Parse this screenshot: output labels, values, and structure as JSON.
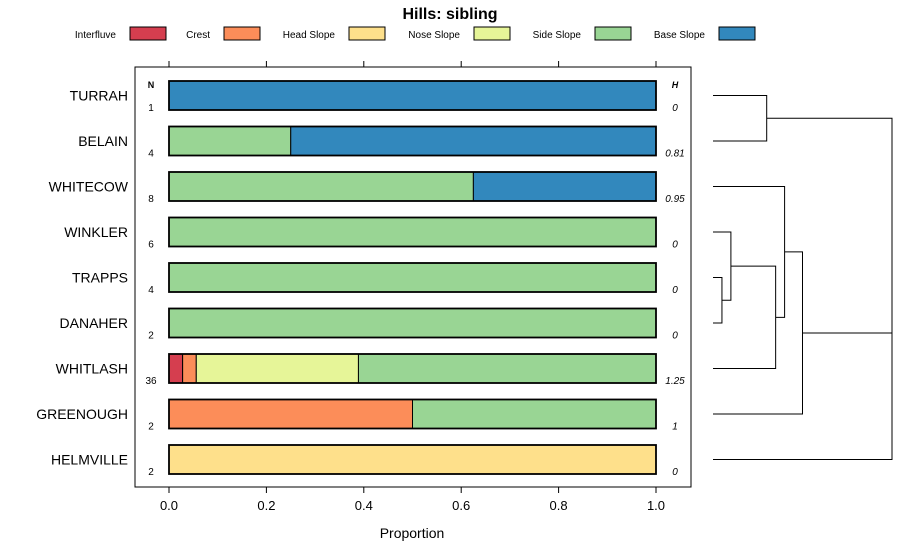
{
  "chart_data": {
    "type": "bar",
    "orientation": "horizontal-stacked",
    "title": "Hills: sibling",
    "xlabel": "Proportion",
    "xlim": [
      0,
      1
    ],
    "xticks": [
      "0.0",
      "0.2",
      "0.4",
      "0.6",
      "0.8",
      "1.0"
    ],
    "n_header": "N",
    "h_header": "H",
    "legend_position": "top",
    "series": [
      {
        "name": "Interfluve",
        "color": "#d53e4f"
      },
      {
        "name": "Crest",
        "color": "#fc8d59"
      },
      {
        "name": "Head Slope",
        "color": "#fee08b"
      },
      {
        "name": "Nose Slope",
        "color": "#e6f598"
      },
      {
        "name": "Side Slope",
        "color": "#99d594"
      },
      {
        "name": "Base Slope",
        "color": "#3288bd"
      }
    ],
    "categories": [
      "TURRAH",
      "BELAIN",
      "WHITECOW",
      "WINKLER",
      "TRAPPS",
      "DANAHER",
      "WHITLASH",
      "GREENOUGH",
      "HELMVILLE"
    ],
    "rows": [
      {
        "name": "TURRAH",
        "n": "1",
        "h": "0",
        "values": [
          0,
          0,
          0,
          0,
          0,
          1
        ]
      },
      {
        "name": "BELAIN",
        "n": "4",
        "h": "0.81",
        "values": [
          0,
          0,
          0,
          0,
          0.25,
          0.75
        ]
      },
      {
        "name": "WHITECOW",
        "n": "8",
        "h": "0.95",
        "values": [
          0,
          0,
          0,
          0,
          0.625,
          0.375
        ]
      },
      {
        "name": "WINKLER",
        "n": "6",
        "h": "0",
        "values": [
          0,
          0,
          0,
          0,
          1,
          0
        ]
      },
      {
        "name": "TRAPPS",
        "n": "4",
        "h": "0",
        "values": [
          0,
          0,
          0,
          0,
          1,
          0
        ]
      },
      {
        "name": "DANAHER",
        "n": "2",
        "h": "0",
        "values": [
          0,
          0,
          0,
          0,
          1,
          0
        ]
      },
      {
        "name": "WHITLASH",
        "n": "36",
        "h": "1.25",
        "values": [
          0.028,
          0.028,
          0,
          0.333,
          0.611,
          0
        ]
      },
      {
        "name": "GREENOUGH",
        "n": "2",
        "h": "1",
        "values": [
          0,
          0.5,
          0,
          0,
          0.5,
          0
        ]
      },
      {
        "name": "HELMVILLE",
        "n": "2",
        "h": "0",
        "values": [
          0,
          0,
          1,
          0,
          0,
          0
        ]
      }
    ],
    "dendrogram": {
      "merges": [
        {
          "a": "TRAPPS",
          "b": "DANAHER",
          "height": 0.05
        },
        {
          "a": "WINKLER",
          "b": "m0",
          "height": 0.1
        },
        {
          "a": "TURRAH",
          "b": "BELAIN",
          "height": 0.3
        },
        {
          "a": "m1",
          "b": "WHITLASH",
          "height": 0.35
        },
        {
          "a": "WHITECOW",
          "b": "m3",
          "height": 0.4
        },
        {
          "a": "m4",
          "b": "GREENOUGH",
          "height": 0.5
        },
        {
          "a": "m2",
          "b": "m5",
          "height": 1.0
        },
        {
          "a": "m6",
          "b": "HELMVILLE",
          "height": 1.0
        }
      ]
    }
  }
}
